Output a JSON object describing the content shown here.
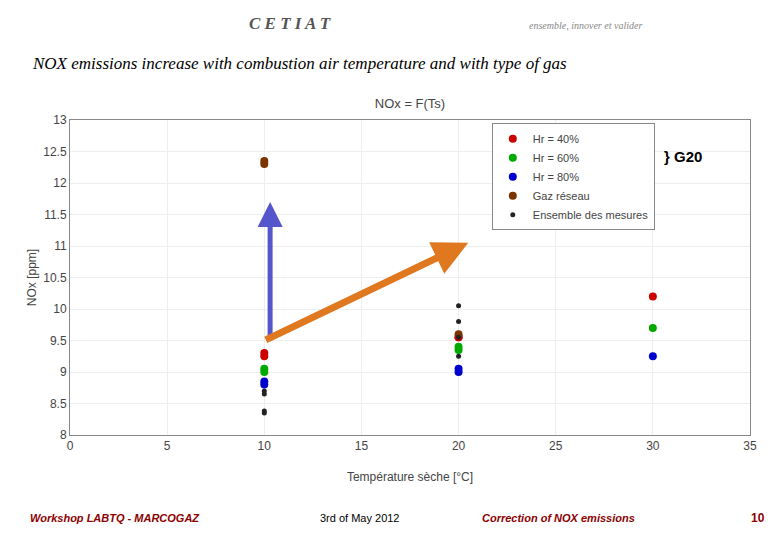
{
  "chart_data": {
    "type": "scatter",
    "title": "NOx = F(Ts)",
    "subtitle": "NOX emissions increase with combustion air temperature and with type of gas",
    "xlabel": "Température sèche [°C]",
    "ylabel": "NOx [ppm]",
    "xlim": [
      0,
      35
    ],
    "ylim": [
      8,
      13
    ],
    "xticks": [
      0,
      5,
      10,
      15,
      20,
      25,
      30,
      35
    ],
    "yticks": [
      8,
      8.5,
      9,
      9.5,
      10,
      10.5,
      11,
      11.5,
      12,
      12.5,
      13
    ],
    "grid": true,
    "legend": "upper right",
    "series": [
      {
        "name": "Hr = 40%",
        "color": "#cc0000",
        "marker": "circle",
        "x": [
          10,
          10,
          20,
          20,
          30
        ],
        "values": [
          9.25,
          9.3,
          9.55,
          9.55,
          10.2
        ]
      },
      {
        "name": "Hr = 60%",
        "color": "#00aa00",
        "marker": "circle",
        "x": [
          10,
          10,
          20,
          20,
          30
        ],
        "values": [
          9.05,
          9.0,
          9.4,
          9.35,
          9.7
        ]
      },
      {
        "name": "Hr = 80%",
        "color": "#0000cc",
        "marker": "circle",
        "x": [
          10,
          10,
          20,
          20,
          30
        ],
        "values": [
          8.85,
          8.8,
          9.05,
          9.0,
          9.25
        ]
      },
      {
        "name": "Gaz réseau",
        "color": "#7B3300",
        "marker": "circle",
        "x": [
          10,
          10,
          20
        ],
        "values": [
          12.35,
          12.3,
          9.6
        ]
      },
      {
        "name": "Ensemble des mesures",
        "color": "#222222",
        "marker": "point",
        "x": [
          10,
          10,
          10,
          10,
          20,
          20,
          20,
          20
        ],
        "values": [
          8.7,
          8.65,
          8.38,
          8.35,
          10.05,
          9.8,
          9.55,
          9.25
        ]
      }
    ],
    "annotations": [
      {
        "text": "} G20"
      },
      {
        "text": "C E T I A T"
      },
      {
        "text": "ensemble, innover et valider"
      },
      {
        "text": "Workshop LABTQ - MARCOGAZ",
        "color": "#8B0000"
      },
      {
        "text": "3rd of May 2012"
      },
      {
        "text": "Correction of NOX emissions",
        "color": "#8B0000"
      },
      {
        "text": "10",
        "color": "#8B0000"
      }
    ],
    "arrows": [
      {
        "x": 10.3,
        "y": 9.5,
        "x_end": 10.3,
        "y_end": 11.7,
        "color": "#5555cc"
      },
      {
        "x": 10,
        "y": 9.5,
        "x_end": 20.5,
        "y_end": 11.05,
        "color": "#e07820"
      }
    ]
  }
}
